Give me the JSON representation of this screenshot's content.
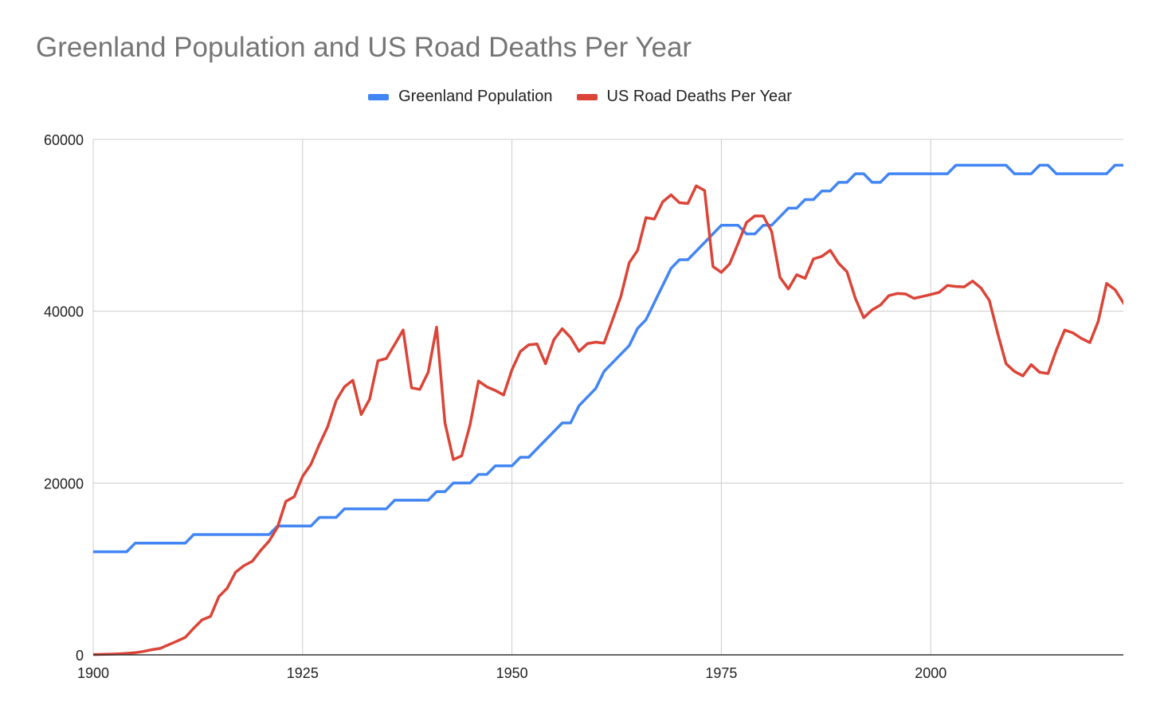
{
  "chart_data": {
    "type": "line",
    "title": "Greenland Population and US Road Deaths Per Year",
    "xlabel": "",
    "ylabel": "",
    "xlim": [
      1900,
      2023
    ],
    "ylim": [
      0,
      60000
    ],
    "x_ticks": [
      "1900",
      "1925",
      "1950",
      "1975",
      "2000"
    ],
    "y_ticks": [
      "0",
      "20000",
      "40000",
      "60000"
    ],
    "grid": true,
    "legend_position": "top",
    "series": [
      {
        "name": "Greenland Population",
        "color": "#4285f4",
        "points": [
          [
            1900,
            12000
          ],
          [
            1904,
            12000
          ],
          [
            1905,
            13000
          ],
          [
            1911,
            13000
          ],
          [
            1912,
            14000
          ],
          [
            1921,
            14000
          ],
          [
            1922,
            15000
          ],
          [
            1926,
            15000
          ],
          [
            1927,
            16000
          ],
          [
            1929,
            16000
          ],
          [
            1930,
            17000
          ],
          [
            1935,
            17000
          ],
          [
            1936,
            18000
          ],
          [
            1940,
            18000
          ],
          [
            1941,
            19000
          ],
          [
            1942,
            19000
          ],
          [
            1943,
            20000
          ],
          [
            1945,
            20000
          ],
          [
            1946,
            21000
          ],
          [
            1947,
            21000
          ],
          [
            1948,
            22000
          ],
          [
            1950,
            22000
          ],
          [
            1951,
            23000
          ],
          [
            1952,
            23000
          ],
          [
            1956,
            27000
          ],
          [
            1957,
            27000
          ],
          [
            1958,
            29000
          ],
          [
            1960,
            31000
          ],
          [
            1961,
            33000
          ],
          [
            1964,
            36000
          ],
          [
            1965,
            38000
          ],
          [
            1966,
            39000
          ],
          [
            1968,
            43000
          ],
          [
            1969,
            45000
          ],
          [
            1970,
            46000
          ],
          [
            1971,
            46000
          ],
          [
            1975,
            50000
          ],
          [
            1977,
            50000
          ],
          [
            1978,
            49000
          ],
          [
            1979,
            49000
          ],
          [
            1980,
            50000
          ],
          [
            1981,
            50000
          ],
          [
            1983,
            52000
          ],
          [
            1984,
            52000
          ],
          [
            1985,
            53000
          ],
          [
            1986,
            53000
          ],
          [
            1987,
            54000
          ],
          [
            1988,
            54000
          ],
          [
            1989,
            55000
          ],
          [
            1990,
            55000
          ],
          [
            1991,
            56000
          ],
          [
            1992,
            56000
          ],
          [
            1993,
            55000
          ],
          [
            1994,
            55000
          ],
          [
            1995,
            56000
          ],
          [
            2002,
            56000
          ],
          [
            2003,
            57000
          ],
          [
            2009,
            57000
          ],
          [
            2010,
            56000
          ],
          [
            2012,
            56000
          ],
          [
            2013,
            57000
          ],
          [
            2014,
            57000
          ],
          [
            2015,
            56000
          ],
          [
            2021,
            56000
          ],
          [
            2022,
            57000
          ],
          [
            2023,
            57000
          ]
        ]
      },
      {
        "name": "US Road Deaths Per Year",
        "color": "#db4437",
        "points": [
          [
            1900,
            36
          ],
          [
            1901,
            54
          ],
          [
            1902,
            79
          ],
          [
            1903,
            117
          ],
          [
            1904,
            172
          ],
          [
            1905,
            252
          ],
          [
            1906,
            400
          ],
          [
            1907,
            600
          ],
          [
            1908,
            751
          ],
          [
            1909,
            1174
          ],
          [
            1910,
            1599
          ],
          [
            1911,
            2043
          ],
          [
            1912,
            3100
          ],
          [
            1913,
            4076
          ],
          [
            1914,
            4468
          ],
          [
            1915,
            6779
          ],
          [
            1916,
            7766
          ],
          [
            1917,
            9630
          ],
          [
            1918,
            10390
          ],
          [
            1919,
            10896
          ],
          [
            1920,
            12155
          ],
          [
            1921,
            13253
          ],
          [
            1922,
            14859
          ],
          [
            1923,
            17870
          ],
          [
            1924,
            18400
          ],
          [
            1925,
            20771
          ],
          [
            1926,
            22194
          ],
          [
            1927,
            24470
          ],
          [
            1928,
            26557
          ],
          [
            1929,
            29592
          ],
          [
            1930,
            31204
          ],
          [
            1931,
            31963
          ],
          [
            1932,
            27979
          ],
          [
            1933,
            29746
          ],
          [
            1934,
            34240
          ],
          [
            1935,
            34494
          ],
          [
            1936,
            36126
          ],
          [
            1937,
            37819
          ],
          [
            1938,
            31083
          ],
          [
            1939,
            30895
          ],
          [
            1940,
            32914
          ],
          [
            1941,
            38142
          ],
          [
            1942,
            27007
          ],
          [
            1943,
            22727
          ],
          [
            1944,
            23165
          ],
          [
            1945,
            26785
          ],
          [
            1946,
            31874
          ],
          [
            1947,
            31193
          ],
          [
            1948,
            30775
          ],
          [
            1949,
            30246
          ],
          [
            1950,
            33186
          ],
          [
            1951,
            35309
          ],
          [
            1952,
            36088
          ],
          [
            1953,
            36190
          ],
          [
            1954,
            33890
          ],
          [
            1955,
            36688
          ],
          [
            1956,
            37965
          ],
          [
            1957,
            36932
          ],
          [
            1958,
            35331
          ],
          [
            1959,
            36223
          ],
          [
            1960,
            36399
          ],
          [
            1961,
            36285
          ],
          [
            1962,
            38980
          ],
          [
            1963,
            41723
          ],
          [
            1964,
            45645
          ],
          [
            1965,
            47089
          ],
          [
            1966,
            50894
          ],
          [
            1967,
            50724
          ],
          [
            1968,
            52725
          ],
          [
            1969,
            53543
          ],
          [
            1970,
            52627
          ],
          [
            1971,
            52542
          ],
          [
            1972,
            54589
          ],
          [
            1973,
            54052
          ],
          [
            1974,
            45196
          ],
          [
            1975,
            44525
          ],
          [
            1976,
            45523
          ],
          [
            1977,
            47878
          ],
          [
            1978,
            50331
          ],
          [
            1979,
            51093
          ],
          [
            1980,
            51091
          ],
          [
            1981,
            49301
          ],
          [
            1982,
            43945
          ],
          [
            1983,
            42589
          ],
          [
            1984,
            44257
          ],
          [
            1985,
            43825
          ],
          [
            1986,
            46087
          ],
          [
            1987,
            46390
          ],
          [
            1988,
            47087
          ],
          [
            1989,
            45582
          ],
          [
            1990,
            44599
          ],
          [
            1991,
            41508
          ],
          [
            1992,
            39250
          ],
          [
            1993,
            40150
          ],
          [
            1994,
            40716
          ],
          [
            1995,
            41817
          ],
          [
            1996,
            42065
          ],
          [
            1997,
            42013
          ],
          [
            1998,
            41501
          ],
          [
            1999,
            41717
          ],
          [
            2000,
            41945
          ],
          [
            2001,
            42196
          ],
          [
            2002,
            43005
          ],
          [
            2003,
            42884
          ],
          [
            2004,
            42836
          ],
          [
            2005,
            43510
          ],
          [
            2006,
            42708
          ],
          [
            2007,
            41259
          ],
          [
            2008,
            37423
          ],
          [
            2009,
            33883
          ],
          [
            2010,
            32999
          ],
          [
            2011,
            32479
          ],
          [
            2012,
            33782
          ],
          [
            2013,
            32893
          ],
          [
            2014,
            32744
          ],
          [
            2015,
            35484
          ],
          [
            2016,
            37806
          ],
          [
            2017,
            37473
          ],
          [
            2018,
            36835
          ],
          [
            2019,
            36355
          ],
          [
            2020,
            38824
          ],
          [
            2021,
            43230
          ],
          [
            2022,
            42514
          ],
          [
            2023,
            40990
          ],
          [
            2024,
            39400
          ]
        ]
      }
    ]
  }
}
